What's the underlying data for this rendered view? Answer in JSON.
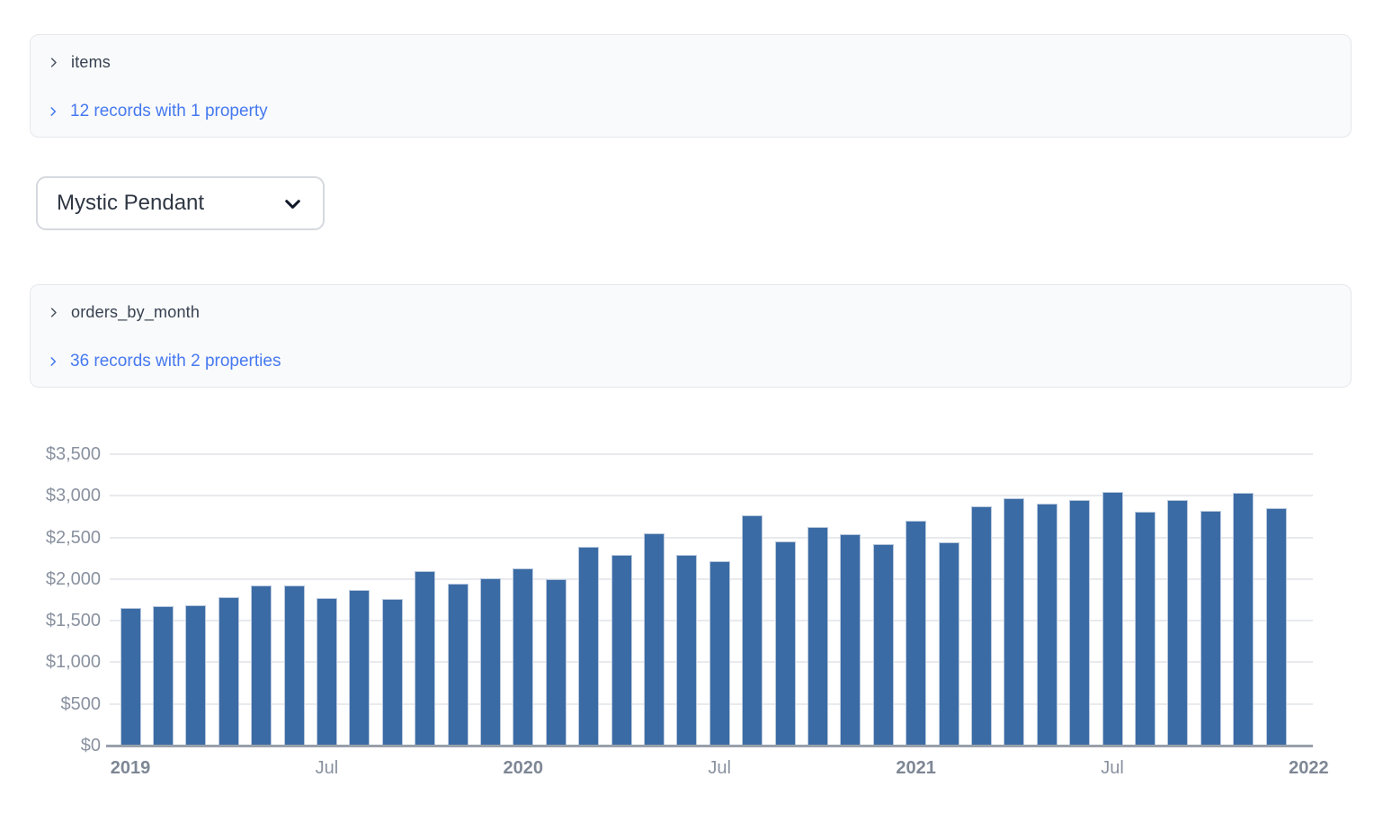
{
  "panels": [
    {
      "name": "items",
      "summary": "12 records with 1 property"
    },
    {
      "name": "orders_by_month",
      "summary": "36 records with 2 properties"
    }
  ],
  "product_select": {
    "value": "Mystic Pendant"
  },
  "icons": {
    "panel_expand": "chevron-right",
    "dropdown": "chevron-down"
  },
  "colors": {
    "link_blue": "#4679f0",
    "bar_fill": "#3b6ba4",
    "panel_bg": "#f9fafb",
    "panel_border": "#e5e7eb",
    "axis_text": "#8a92a0"
  },
  "chart_data": {
    "type": "bar",
    "title": "",
    "xlabel": "",
    "ylabel": "",
    "grid": true,
    "ylim": [
      0,
      3500
    ],
    "x": [
      "2019-01",
      "2019-02",
      "2019-03",
      "2019-04",
      "2019-05",
      "2019-06",
      "2019-07",
      "2019-08",
      "2019-09",
      "2019-10",
      "2019-11",
      "2019-12",
      "2020-01",
      "2020-02",
      "2020-03",
      "2020-04",
      "2020-05",
      "2020-06",
      "2020-07",
      "2020-08",
      "2020-09",
      "2020-10",
      "2020-11",
      "2020-12",
      "2021-01",
      "2021-02",
      "2021-03",
      "2021-04",
      "2021-05",
      "2021-06",
      "2021-07",
      "2021-08",
      "2021-09",
      "2021-10",
      "2021-11",
      "2021-12"
    ],
    "values": [
      1655,
      1670,
      1685,
      1785,
      1925,
      1925,
      1775,
      1870,
      1765,
      2100,
      1950,
      2005,
      2130,
      1995,
      2390,
      2295,
      2555,
      2290,
      2220,
      2770,
      2450,
      2630,
      2540,
      2425,
      2705,
      2440,
      2875,
      2975,
      2910,
      2955,
      3045,
      2805,
      2945,
      2820,
      3035,
      2850
    ],
    "y_ticks": [
      {
        "value": 0,
        "label": "$0"
      },
      {
        "value": 500,
        "label": "$500"
      },
      {
        "value": 1000,
        "label": "$1,000"
      },
      {
        "value": 1500,
        "label": "$1,500"
      },
      {
        "value": 2000,
        "label": "$2,000"
      },
      {
        "value": 2500,
        "label": "$2,500"
      },
      {
        "value": 3000,
        "label": "$3,000"
      },
      {
        "value": 3500,
        "label": "$3,500"
      }
    ],
    "x_ticks": [
      {
        "index": 0,
        "label": "2019",
        "bold": true
      },
      {
        "index": 6,
        "label": "Jul",
        "bold": false
      },
      {
        "index": 12,
        "label": "2020",
        "bold": true
      },
      {
        "index": 18,
        "label": "Jul",
        "bold": false
      },
      {
        "index": 24,
        "label": "2021",
        "bold": true
      },
      {
        "index": 30,
        "label": "Jul",
        "bold": false
      },
      {
        "index": 36,
        "label": "2022",
        "bold": true
      }
    ]
  }
}
